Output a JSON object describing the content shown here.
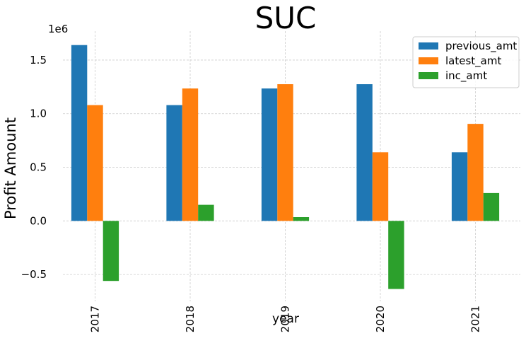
{
  "chart_data": {
    "type": "bar",
    "title": "SUC",
    "xlabel": "year",
    "ylabel": "Profit Amount",
    "offset_label": "1e6",
    "categories": [
      "2017",
      "2018",
      "2019",
      "2020",
      "2021"
    ],
    "series": [
      {
        "name": "previous_amt",
        "color": "#1f77b4",
        "values": [
          1.64,
          1.08,
          1.235,
          1.275,
          0.64
        ]
      },
      {
        "name": "latest_amt",
        "color": "#ff7f0e",
        "values": [
          1.08,
          1.235,
          1.275,
          0.64,
          0.905
        ]
      },
      {
        "name": "inc_amt",
        "color": "#2ca02c",
        "values": [
          -0.56,
          0.15,
          0.035,
          -0.635,
          0.26
        ]
      }
    ],
    "ylim": [
      -0.75,
      1.77
    ],
    "yticks": [
      -0.5,
      0.0,
      0.5,
      1.0,
      1.5
    ],
    "ytick_labels": [
      "−0.5",
      "0.0",
      "0.5",
      "1.0",
      "1.5"
    ],
    "grid": true,
    "legend_position": "top-right"
  }
}
